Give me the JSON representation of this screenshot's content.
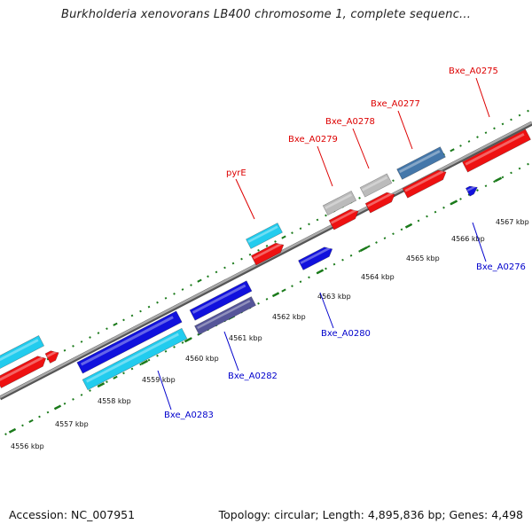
{
  "title": "Burkholderia xenovorans LB400 chromosome 1, complete sequenc...",
  "footer": {
    "accession": "Accession: NC_007951",
    "summary": "Topology: circular; Length: 4,895,836 bp; Genes: 4,498"
  },
  "colors": {
    "forward_label": "#dd0000",
    "reverse_label": "#0000cc",
    "tick": "#1a7a1a",
    "backbone": "#888888",
    "red": "#ee1111",
    "blue": "#1111dd",
    "cyan": "#22ccee",
    "gray": "#bbbbbb",
    "steelblue": "#4477aa"
  },
  "ruler_labels": [
    "4556 kbp",
    "4557 kbp",
    "4558 kbp",
    "4559 kbp",
    "4560 kbp",
    "4561 kbp",
    "4562 kbp",
    "4563 kbp",
    "4564 kbp",
    "4565 kbp",
    "4566 kbp",
    "4567 kbp"
  ],
  "gene_labels": {
    "pyrE": "pyrE",
    "Bxe_A0279": "Bxe_A0279",
    "Bxe_A0278": "Bxe_A0278",
    "Bxe_A0277": "Bxe_A0277",
    "Bxe_A0275": "Bxe_A0275",
    "Bxe_A0276": "Bxe_A0276",
    "Bxe_A0280": "Bxe_A0280",
    "Bxe_A0282": "Bxe_A0282",
    "Bxe_A0283": "Bxe_A0283"
  }
}
